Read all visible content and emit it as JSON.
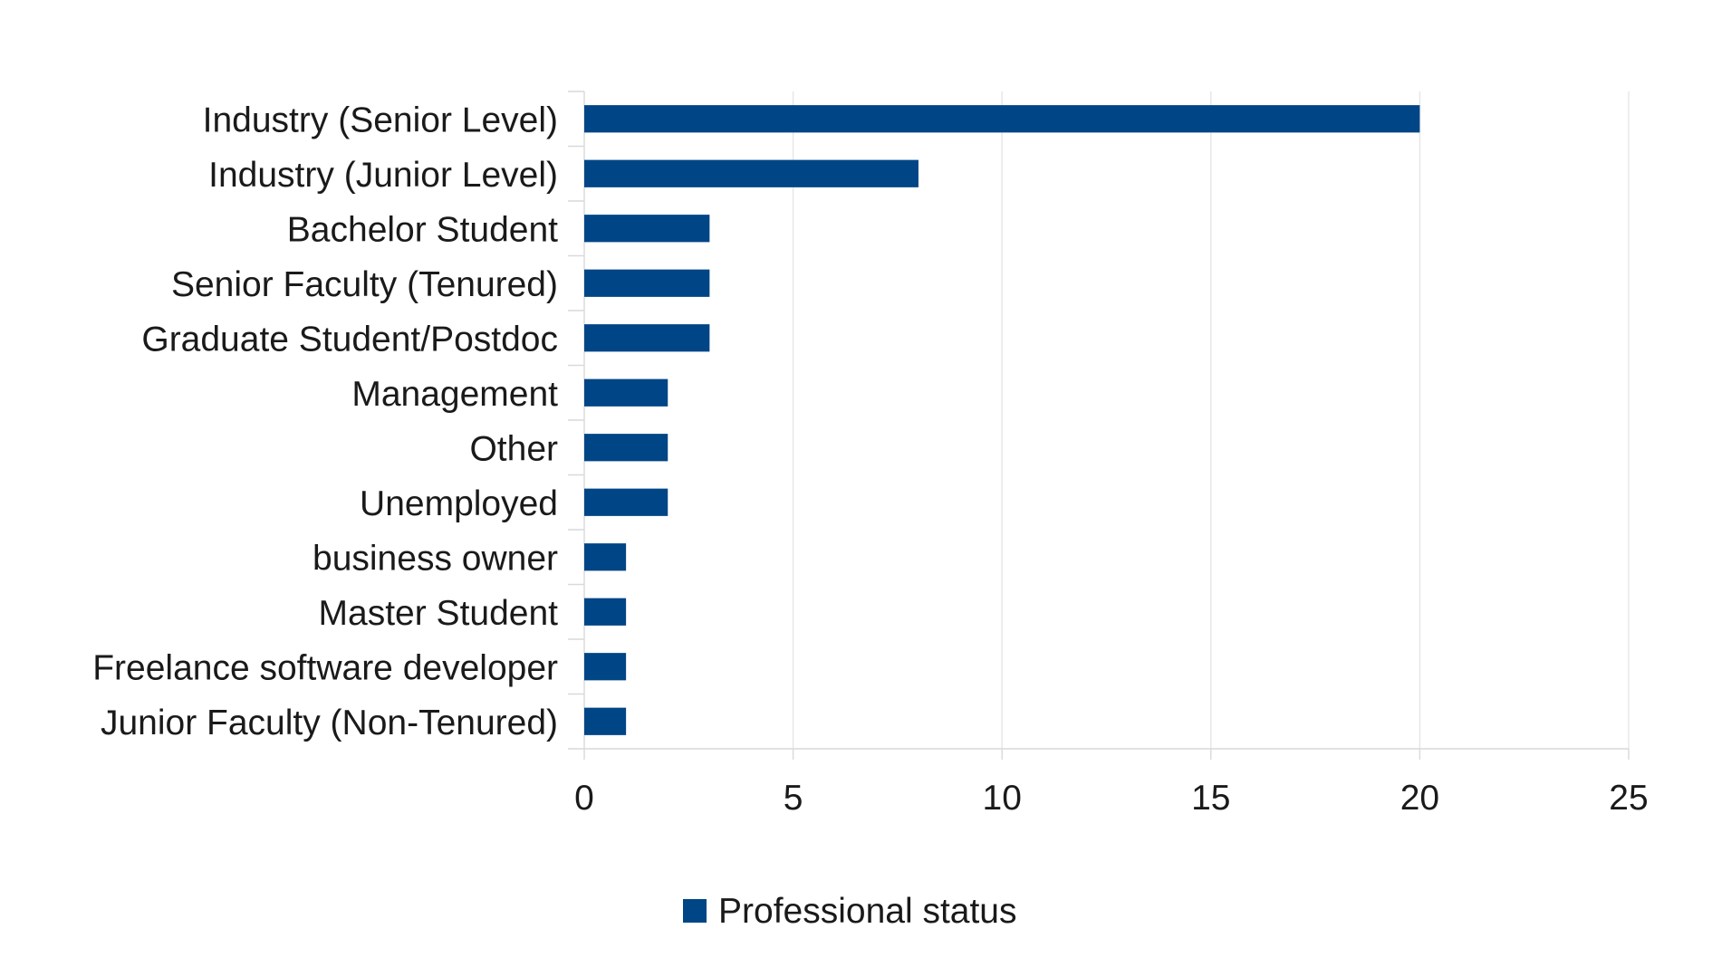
{
  "chart_data": {
    "type": "bar",
    "orientation": "horizontal",
    "categories": [
      "Industry (Senior Level)",
      "Industry (Junior Level)",
      "Bachelor Student",
      "Senior Faculty (Tenured)",
      "Graduate Student/Postdoc",
      "Management",
      "Other",
      "Unemployed",
      "business owner",
      "Master Student",
      "Freelance software developer",
      "Junior Faculty (Non-Tenured)"
    ],
    "series": [
      {
        "name": "Professional status",
        "color": "#004586",
        "values": [
          20,
          8,
          3,
          3,
          3,
          2,
          2,
          2,
          1,
          1,
          1,
          1
        ]
      }
    ],
    "title": "",
    "xlabel": "",
    "ylabel": "",
    "xlim": [
      0,
      25
    ],
    "xticks": [
      0,
      5,
      10,
      15,
      20,
      25
    ],
    "grid": "vertical",
    "legend": "bottom-center"
  }
}
